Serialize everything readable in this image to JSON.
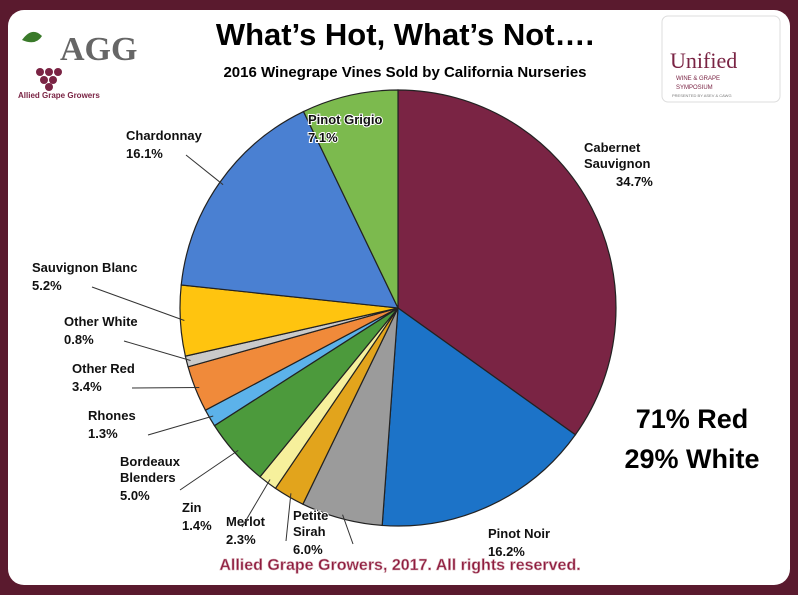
{
  "chart_data": {
    "type": "pie",
    "title": "What’s Hot, What’s Not….",
    "subtitle": "2016 Winegrape Vines Sold by California Nurseries",
    "categories": [
      "Cabernet Sauvignon",
      "Pinot Noir",
      "Petite Sirah",
      "Merlot",
      "Zin",
      "Bordeaux Blenders",
      "Rhones",
      "Other Red",
      "Other White",
      "Sauvignon Blanc",
      "Chardonnay",
      "Pinot Grigio"
    ],
    "values": [
      34.7,
      16.2,
      6.0,
      2.3,
      1.4,
      5.0,
      1.3,
      3.4,
      0.8,
      5.2,
      16.1,
      7.1
    ],
    "value_labels": [
      "34.7%",
      "16.2%",
      "6.0%",
      "2.3%",
      "1.4%",
      "5.0%",
      "1.3%",
      "3.4%",
      "0.8%",
      "5.2%",
      "16.1%",
      "7.1%"
    ],
    "colors": [
      "#7a2444",
      "#1c73c8",
      "#9b9b9b",
      "#e2a41c",
      "#f6f09c",
      "#4c9a3c",
      "#5cb2ea",
      "#f08a3a",
      "#cacaca",
      "#ffc40f",
      "#4a80d2",
      "#7cba4e"
    ],
    "annotations": [
      "71% Red",
      "29% White"
    ],
    "footer": "Allied Grape Growers, 2017.  All rights reserved."
  },
  "logos": {
    "left": {
      "letters": "AGG",
      "name": "Allied Grape Growers"
    },
    "right": {
      "name": "Unified",
      "line1": "WINE & GRAPE",
      "line2": "SYMPOSIUM",
      "line3": "PRESENTED BY ASEV & CAWG"
    }
  }
}
